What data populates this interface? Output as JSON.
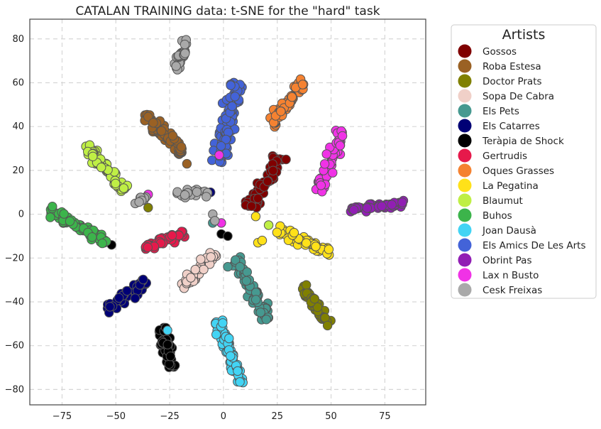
{
  "chart_data": {
    "type": "scatter",
    "title": "CATALAN TRAINING data: t-SNE for the \"hard\" task",
    "xlabel": "",
    "ylabel": "",
    "xlim": [
      -90,
      94
    ],
    "ylim": [
      -87,
      89
    ],
    "xticks": [
      -75,
      -50,
      -25,
      0,
      25,
      50,
      75
    ],
    "yticks": [
      -80,
      -60,
      -40,
      -20,
      0,
      20,
      40,
      60,
      80
    ],
    "grid": true,
    "legend": {
      "title": "Artists",
      "placement": "outside-right"
    },
    "series": [
      {
        "name": "Gossos",
        "color": "#800000",
        "clusters": [
          {
            "from": [
              12,
              3
            ],
            "to": [
              27,
              27
            ],
            "width": 3.5,
            "n": 60
          }
        ]
      },
      {
        "name": "Roba Estesa",
        "color": "#9a6124",
        "clusters": [
          {
            "from": [
              -37,
              46
            ],
            "to": [
              -19,
              28
            ],
            "width": 3.0,
            "n": 60
          }
        ],
        "points": [
          [
            -17,
            23
          ]
        ]
      },
      {
        "name": "Doctor Prats",
        "color": "#808000",
        "clusters": [
          {
            "from": [
              37,
              -33
            ],
            "to": [
              49,
              -51
            ],
            "width": 2.5,
            "n": 45
          }
        ],
        "points": [
          [
            -35,
            3
          ]
        ]
      },
      {
        "name": "Sopa De Cabra",
        "color": "#f0d0c8",
        "clusters": [
          {
            "from": [
              -20,
              -34
            ],
            "to": [
              -4,
              -18
            ],
            "width": 2.5,
            "n": 45
          }
        ]
      },
      {
        "name": "Els Pets",
        "color": "#469990",
        "clusters": [
          {
            "from": [
              6,
              -20
            ],
            "to": [
              20,
              -48
            ],
            "width": 3.0,
            "n": 65
          }
        ],
        "points": [
          [
            2,
            -24
          ],
          [
            -5,
            -4
          ]
        ]
      },
      {
        "name": "Els Catarres",
        "color": "#000075",
        "clusters": [
          {
            "from": [
              -54,
              -44
            ],
            "to": [
              -36,
              -30
            ],
            "width": 3.0,
            "n": 55
          }
        ],
        "points": [
          [
            -6,
            10
          ]
        ]
      },
      {
        "name": "Teràpia de Shock",
        "color": "#000000",
        "clusters": [
          {
            "from": [
              -29,
              -52
            ],
            "to": [
              -24,
              -70
            ],
            "width": 2.5,
            "n": 55
          }
        ],
        "points": [
          [
            -52,
            -14
          ],
          [
            -1,
            -9
          ],
          [
            2,
            -10
          ]
        ]
      },
      {
        "name": "Gertrudis",
        "color": "#e6194b",
        "clusters": [
          {
            "from": [
              -37,
              -15
            ],
            "to": [
              -18,
              -9
            ],
            "width": 2.0,
            "n": 50
          }
        ]
      },
      {
        "name": "Oques Grasses",
        "color": "#f58231",
        "clusters": [
          {
            "from": [
              22,
              40
            ],
            "to": [
              37,
              61
            ],
            "width": 3.0,
            "n": 55
          }
        ]
      },
      {
        "name": "La Pegatina",
        "color": "#ffe119",
        "clusters": [
          {
            "from": [
              25,
              -7
            ],
            "to": [
              50,
              -18
            ],
            "width": 2.5,
            "n": 60
          }
        ],
        "points": [
          [
            15,
            -1
          ],
          [
            16,
            -13
          ],
          [
            18,
            -12
          ]
        ]
      },
      {
        "name": "Blaumut",
        "color": "#bfef45",
        "clusters": [
          {
            "from": [
              -64,
              31
            ],
            "to": [
              -46,
              11
            ],
            "width": 2.5,
            "n": 60
          }
        ],
        "points": [
          [
            21,
            -5
          ]
        ]
      },
      {
        "name": "Buhos",
        "color": "#3cb44b",
        "clusters": [
          {
            "from": [
              -82,
              2
            ],
            "to": [
              -54,
              -13
            ],
            "width": 2.5,
            "n": 65
          }
        ]
      },
      {
        "name": "Joan Dausà",
        "color": "#42d4f4",
        "clusters": [
          {
            "from": [
              -3,
              -48
            ],
            "to": [
              8,
              -78
            ],
            "width": 2.5,
            "n": 60
          }
        ],
        "points": [
          [
            -26,
            -53
          ]
        ]
      },
      {
        "name": "Els Amics De Les Arts",
        "color": "#4363d8",
        "clusters": [
          {
            "from": [
              -2,
              23
            ],
            "to": [
              6,
              61
            ],
            "width": 3.5,
            "n": 90
          }
        ]
      },
      {
        "name": "Obrint Pas",
        "color": "#911eb4",
        "clusters": [
          {
            "from": [
              59,
              2
            ],
            "to": [
              84,
              5
            ],
            "width": 1.5,
            "n": 60
          }
        ]
      },
      {
        "name": "Lax n Busto",
        "color": "#f032e6",
        "clusters": [
          {
            "from": [
              44,
              9
            ],
            "to": [
              55,
              38
            ],
            "width": 2.5,
            "n": 55
          }
        ],
        "points": [
          [
            -35,
            9
          ],
          [
            -2,
            27
          ],
          [
            -1,
            -4
          ]
        ]
      },
      {
        "name": "Cesk Freixas",
        "color": "#a9a9a9",
        "clusters": [
          {
            "from": [
              -22,
              66
            ],
            "to": [
              -17,
              80
            ],
            "width": 2.0,
            "n": 35
          },
          {
            "from": [
              -22,
              9
            ],
            "to": [
              -7,
              10
            ],
            "width": 1.8,
            "n": 22
          },
          {
            "from": [
              -40,
              4
            ],
            "to": [
              -36,
              10
            ],
            "width": 1.5,
            "n": 10
          }
        ],
        "points": [
          [
            -5,
            0
          ],
          [
            -4,
            -3
          ],
          [
            -8,
            8
          ]
        ]
      }
    ]
  }
}
